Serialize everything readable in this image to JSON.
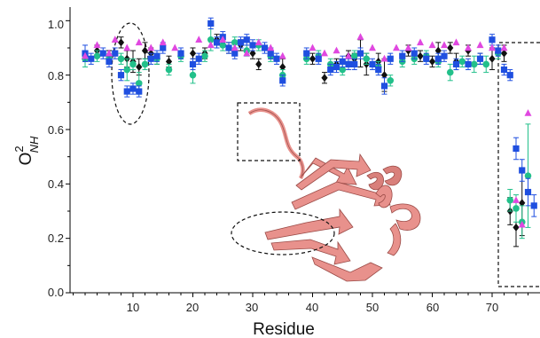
{
  "chart_data": {
    "type": "scatter",
    "xlabel": "Residue",
    "ylabel": {
      "base": "O",
      "sup": "2",
      "sub": "NH"
    },
    "xlim": [
      0,
      77
    ],
    "ylim": [
      0,
      1.05
    ],
    "x_ticks": [
      "10",
      "20",
      "30",
      "40",
      "50",
      "60",
      "70"
    ],
    "y_ticks": [
      "0.0",
      "0.2",
      "0.4",
      "0.6",
      "0.8",
      "1.0"
    ],
    "grid": false,
    "legend": "none",
    "colors": {
      "black": "#111111",
      "blue": "#1f4fe0",
      "green": "#22c08a",
      "magenta": "#e048e0",
      "protein": "#e8918c",
      "annotation": "#111111"
    },
    "series": [
      {
        "color_key": "black",
        "marker": "diamond",
        "errorbars": true,
        "points": [
          [
            2,
            0.87
          ],
          [
            4,
            0.89
          ],
          [
            6,
            0.87
          ],
          [
            8,
            0.92
          ],
          [
            9,
            0.86
          ],
          [
            10,
            0.85
          ],
          [
            11,
            0.83
          ],
          [
            12,
            0.89
          ],
          [
            13,
            0.88
          ],
          [
            14,
            0.86
          ],
          [
            16,
            0.85
          ],
          [
            18,
            0.88
          ],
          [
            20,
            0.88
          ],
          [
            22,
            0.88
          ],
          [
            24,
            0.93
          ],
          [
            26,
            0.9
          ],
          [
            28,
            0.91
          ],
          [
            30,
            0.88
          ],
          [
            31,
            0.84
          ],
          [
            33,
            0.88
          ],
          [
            35,
            0.83
          ],
          [
            40,
            0.86
          ],
          [
            42,
            0.79
          ],
          [
            44,
            0.84
          ],
          [
            46,
            0.87
          ],
          [
            47,
            0.86
          ],
          [
            48,
            0.88
          ],
          [
            49,
            0.84
          ],
          [
            51,
            0.85
          ],
          [
            52,
            0.8
          ],
          [
            56,
            0.89
          ],
          [
            58,
            0.87
          ],
          [
            60,
            0.85
          ],
          [
            61,
            0.89
          ],
          [
            63,
            0.9
          ],
          [
            64,
            0.85
          ],
          [
            66,
            0.89
          ],
          [
            68,
            0.86
          ],
          [
            70,
            0.86
          ],
          [
            72,
            0.88
          ],
          [
            73,
            0.3
          ],
          [
            74,
            0.24
          ],
          [
            75,
            0.33
          ]
        ],
        "err": [
          0.02,
          0.02,
          0.02,
          0.02,
          0.03,
          0.04,
          0.03,
          0.03,
          0.02,
          0.02,
          0.02,
          0.02,
          0.02,
          0.02,
          0.02,
          0.02,
          0.02,
          0.02,
          0.02,
          0.02,
          0.03,
          0.02,
          0.02,
          0.02,
          0.02,
          0.02,
          0.05,
          0.04,
          0.03,
          0.06,
          0.02,
          0.02,
          0.02,
          0.03,
          0.02,
          0.03,
          0.02,
          0.02,
          0.04,
          0.03,
          0.05,
          0.07,
          0.12
        ]
      },
      {
        "color_key": "blue",
        "marker": "square",
        "errorbars": true,
        "points": [
          [
            2,
            0.88
          ],
          [
            3,
            0.86
          ],
          [
            5,
            0.88
          ],
          [
            6,
            0.85
          ],
          [
            7,
            0.88
          ],
          [
            8,
            0.8
          ],
          [
            9,
            0.74
          ],
          [
            10,
            0.75
          ],
          [
            11,
            0.74
          ],
          [
            13,
            0.86
          ],
          [
            14,
            0.87
          ],
          [
            15,
            0.9
          ],
          [
            18,
            0.88
          ],
          [
            20,
            0.84
          ],
          [
            21,
            0.86
          ],
          [
            23,
            0.99
          ],
          [
            24,
            0.92
          ],
          [
            25,
            0.94
          ],
          [
            26,
            0.9
          ],
          [
            27,
            0.88
          ],
          [
            28,
            0.92
          ],
          [
            29,
            0.93
          ],
          [
            30,
            0.91
          ],
          [
            32,
            0.9
          ],
          [
            33,
            0.88
          ],
          [
            34,
            0.86
          ],
          [
            35,
            0.78
          ],
          [
            39,
            0.88
          ],
          [
            41,
            0.86
          ],
          [
            43,
            0.82
          ],
          [
            44,
            0.83
          ],
          [
            45,
            0.85
          ],
          [
            46,
            0.84
          ],
          [
            47,
            0.84
          ],
          [
            48,
            0.88
          ],
          [
            50,
            0.84
          ],
          [
            51,
            0.82
          ],
          [
            52,
            0.76
          ],
          [
            53,
            0.86
          ],
          [
            55,
            0.87
          ],
          [
            57,
            0.88
          ],
          [
            59,
            0.86
          ],
          [
            61,
            0.86
          ],
          [
            62,
            0.87
          ],
          [
            64,
            0.84
          ],
          [
            66,
            0.84
          ],
          [
            68,
            0.86
          ],
          [
            70,
            0.93
          ],
          [
            71,
            0.89
          ],
          [
            72,
            0.82
          ],
          [
            73,
            0.8
          ],
          [
            74,
            0.53
          ],
          [
            75,
            0.45
          ],
          [
            76,
            0.37
          ],
          [
            77,
            0.32
          ]
        ],
        "err": [
          0.03,
          0.02,
          0.02,
          0.02,
          0.02,
          0.02,
          0.02,
          0.02,
          0.02,
          0.02,
          0.02,
          0.02,
          0.02,
          0.02,
          0.02,
          0.02,
          0.02,
          0.02,
          0.02,
          0.02,
          0.02,
          0.02,
          0.02,
          0.02,
          0.02,
          0.02,
          0.02,
          0.02,
          0.02,
          0.02,
          0.02,
          0.02,
          0.02,
          0.02,
          0.02,
          0.02,
          0.02,
          0.03,
          0.02,
          0.02,
          0.02,
          0.02,
          0.02,
          0.02,
          0.02,
          0.02,
          0.02,
          0.02,
          0.02,
          0.02,
          0.02,
          0.04,
          0.04,
          0.05,
          0.04
        ]
      },
      {
        "color_key": "green",
        "marker": "circle",
        "errorbars": true,
        "points": [
          [
            2,
            0.86
          ],
          [
            4,
            0.87
          ],
          [
            6,
            0.86
          ],
          [
            8,
            0.86
          ],
          [
            9,
            0.82
          ],
          [
            10,
            0.84
          ],
          [
            11,
            0.77
          ],
          [
            12,
            0.84
          ],
          [
            14,
            0.86
          ],
          [
            16,
            0.82
          ],
          [
            18,
            0.87
          ],
          [
            20,
            0.8
          ],
          [
            22,
            0.87
          ],
          [
            23,
            0.93
          ],
          [
            25,
            0.91
          ],
          [
            27,
            0.92
          ],
          [
            29,
            0.89
          ],
          [
            31,
            0.91
          ],
          [
            33,
            0.87
          ],
          [
            35,
            0.8
          ],
          [
            39,
            0.86
          ],
          [
            41,
            0.87
          ],
          [
            43,
            0.84
          ],
          [
            45,
            0.82
          ],
          [
            47,
            0.87
          ],
          [
            49,
            0.86
          ],
          [
            51,
            0.83
          ],
          [
            53,
            0.78
          ],
          [
            55,
            0.85
          ],
          [
            57,
            0.86
          ],
          [
            59,
            0.87
          ],
          [
            61,
            0.85
          ],
          [
            63,
            0.81
          ],
          [
            65,
            0.85
          ],
          [
            67,
            0.84
          ],
          [
            69,
            0.84
          ],
          [
            71,
            0.88
          ],
          [
            73,
            0.34
          ],
          [
            74,
            0.31
          ],
          [
            75,
            0.26
          ],
          [
            76,
            0.43
          ]
        ],
        "err": [
          0.03,
          0.02,
          0.02,
          0.02,
          0.04,
          0.02,
          0.04,
          0.02,
          0.02,
          0.02,
          0.02,
          0.03,
          0.02,
          0.04,
          0.02,
          0.02,
          0.02,
          0.02,
          0.02,
          0.02,
          0.02,
          0.02,
          0.02,
          0.02,
          0.02,
          0.02,
          0.02,
          0.02,
          0.02,
          0.02,
          0.02,
          0.02,
          0.03,
          0.02,
          0.03,
          0.03,
          0.02,
          0.04,
          0.05,
          0.06,
          0.19
        ]
      },
      {
        "color_key": "magenta",
        "marker": "triangle",
        "errorbars": false,
        "points": [
          [
            2,
            0.87
          ],
          [
            4,
            0.91
          ],
          [
            6,
            0.88
          ],
          [
            7,
            0.93
          ],
          [
            9,
            0.9
          ],
          [
            11,
            0.92
          ],
          [
            13,
            0.9
          ],
          [
            15,
            0.92
          ],
          [
            17,
            0.9
          ],
          [
            21,
            0.93
          ],
          [
            23,
            0.91
          ],
          [
            25,
            0.93
          ],
          [
            27,
            0.9
          ],
          [
            29,
            0.88
          ],
          [
            31,
            0.92
          ],
          [
            33,
            0.9
          ],
          [
            35,
            0.87
          ],
          [
            40,
            0.9
          ],
          [
            42,
            0.88
          ],
          [
            44,
            0.89
          ],
          [
            46,
            0.87
          ],
          [
            48,
            0.94
          ],
          [
            50,
            0.9
          ],
          [
            52,
            0.86
          ],
          [
            54,
            0.9
          ],
          [
            56,
            0.9
          ],
          [
            58,
            0.92
          ],
          [
            60,
            0.91
          ],
          [
            62,
            0.91
          ],
          [
            64,
            0.92
          ],
          [
            66,
            0.9
          ],
          [
            68,
            0.91
          ],
          [
            70,
            0.9
          ],
          [
            72,
            0.9
          ],
          [
            74,
            0.34
          ],
          [
            75,
            0.25
          ],
          [
            76,
            0.66
          ]
        ]
      }
    ]
  }
}
